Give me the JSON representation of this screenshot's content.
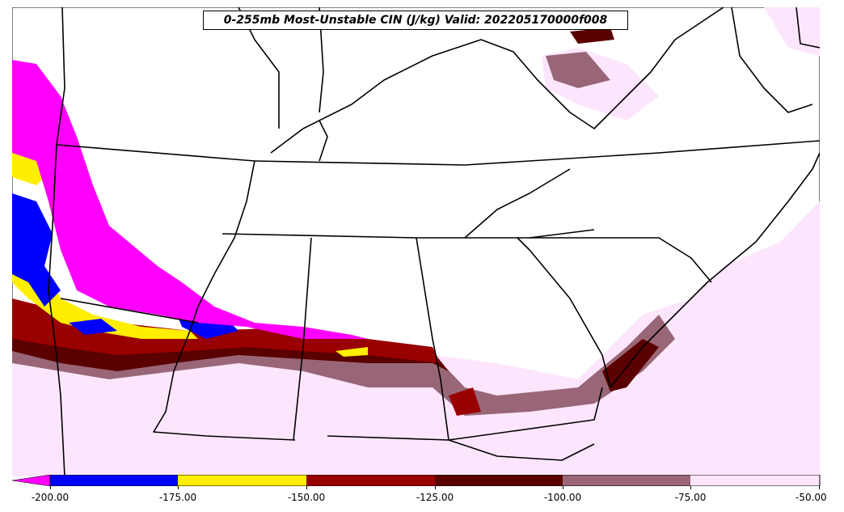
{
  "title": "0-255mb Most-Unstable CIN (J/kg) Valid: 202205170000f008",
  "colorbar": {
    "ticks": [
      "-200.00",
      "-175.00",
      "-150.00",
      "-125.00",
      "-100.00",
      "-75.00",
      "-50.00"
    ],
    "colors": {
      "below_min": "#ff00ff",
      "bin_-200_-175": "#0000ff",
      "bin_-175_-150": "#ffee00",
      "bin_-150_-125": "#990000",
      "bin_-125_-100": "#5a0000",
      "bin_-100_-75": "#996677",
      "bin_-75_-50": "#fde6fd"
    }
  }
}
